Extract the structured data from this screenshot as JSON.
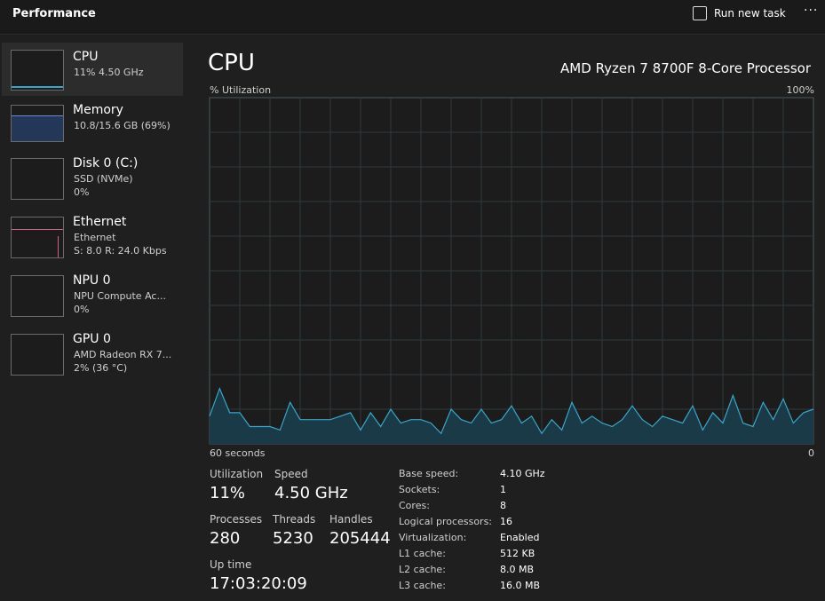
{
  "header": {
    "title": "Performance",
    "run_new_task": "Run new task"
  },
  "sidebar": [
    {
      "name": "CPU",
      "lines": [
        "11%  4.50 GHz"
      ]
    },
    {
      "name": "Memory",
      "lines": [
        "10.8/15.6 GB (69%)"
      ]
    },
    {
      "name": "Disk 0 (C:)",
      "lines": [
        "SSD (NVMe)",
        "0%"
      ]
    },
    {
      "name": "Ethernet",
      "lines": [
        "Ethernet",
        "S: 8.0  R: 24.0 Kbps"
      ]
    },
    {
      "name": "NPU 0",
      "lines": [
        "NPU Compute Ac...",
        "0%"
      ]
    },
    {
      "name": "GPU 0",
      "lines": [
        "AMD Radeon RX 7...",
        "2% (36 °C)"
      ]
    }
  ],
  "main": {
    "title": "CPU",
    "processor": "AMD Ryzen 7 8700F 8-Core Processor"
  },
  "graph": {
    "y_label": "% Utilization",
    "x_label": "60 seconds",
    "ylim": [
      0,
      100
    ],
    "yticks": [
      0,
      {
        "value": 100,
        "label": "100%"
      }
    ],
    "values": [
      8,
      16,
      9,
      9,
      5,
      5,
      5,
      4,
      12,
      7,
      7,
      7,
      7,
      8,
      9,
      4,
      9,
      5,
      10,
      6,
      7,
      7,
      6,
      3,
      10,
      7,
      6,
      10,
      6,
      7,
      11,
      6,
      8,
      3,
      7,
      4,
      12,
      6,
      8,
      6,
      5,
      7,
      11,
      7,
      5,
      8,
      7,
      6,
      11,
      4,
      9,
      6,
      14,
      6,
      5,
      12,
      7,
      13,
      6,
      9,
      10
    ]
  },
  "stats": [
    {
      "label": "Utilization",
      "value": "11%"
    },
    {
      "label": "Speed",
      "value": "4.50 GHz"
    },
    {
      "label": "Processes",
      "value": "280"
    },
    {
      "label": "Threads",
      "value": "5230"
    },
    {
      "label": "Handles",
      "value": "205444"
    },
    {
      "label": "Up time",
      "value": "17:03:20:09"
    }
  ],
  "details": [
    {
      "label": "Base speed:",
      "value": "4.10 GHz"
    },
    {
      "label": "Sockets:",
      "value": "1"
    },
    {
      "label": "Cores:",
      "value": "8"
    },
    {
      "label": "Logical processors:",
      "value": "16"
    },
    {
      "label": "Virtualization:",
      "value": "Enabled"
    },
    {
      "label": "L1 cache:",
      "value": "512 KB"
    },
    {
      "label": "L2 cache:",
      "value": "8.0 MB"
    },
    {
      "label": "L3 cache:",
      "value": "16.0 MB"
    }
  ]
}
